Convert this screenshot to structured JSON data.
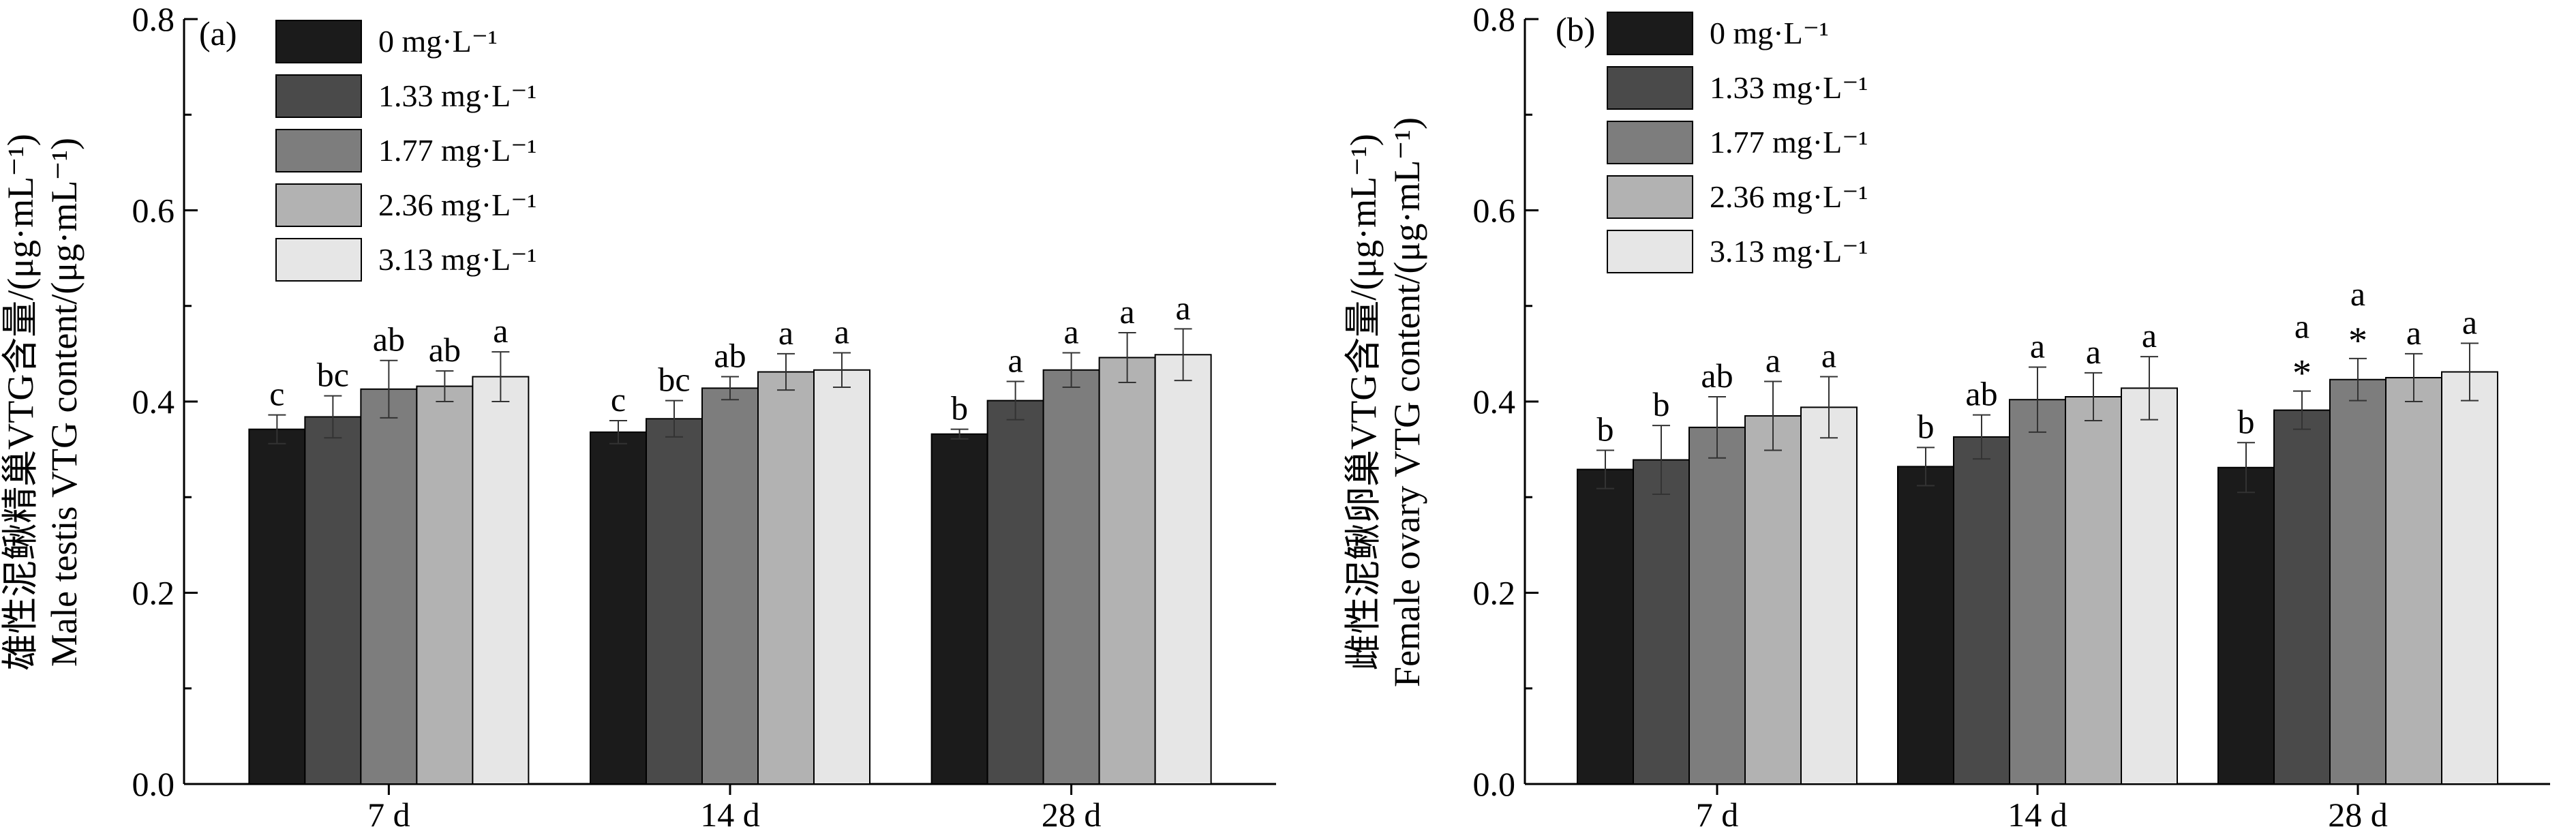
{
  "colors": {
    "series": [
      "#1b1b1b",
      "#4a4a4a",
      "#7d7d7d",
      "#b2b2b2",
      "#e6e6e6"
    ],
    "axis": "#000000",
    "bar_stroke": "#000000"
  },
  "chart_data": [
    {
      "type": "bar",
      "panel_label": "(a)",
      "ylabel_cn": "雄性泥鳅精巢VTG含量/(μg·mL⁻¹)",
      "ylabel_en": "Male testis VTG content/(μg·mL⁻¹)",
      "xlabel": "",
      "ylim": [
        0,
        0.8
      ],
      "yticks": [
        "0.0",
        "0.2",
        "0.4",
        "0.6",
        "0.8"
      ],
      "categories": [
        "7 d",
        "14 d",
        "28 d"
      ],
      "legend_position": "top-left",
      "series": [
        {
          "name": "0 mg·L⁻¹",
          "values": [
            0.371,
            0.368,
            0.366
          ],
          "errors": [
            0.015,
            0.012,
            0.005
          ],
          "letters": [
            "c",
            "c",
            "b"
          ],
          "stars": [
            "",
            "",
            ""
          ]
        },
        {
          "name": "1.33 mg·L⁻¹",
          "values": [
            0.384,
            0.382,
            0.401
          ],
          "errors": [
            0.022,
            0.019,
            0.02
          ],
          "letters": [
            "bc",
            "bc",
            "a"
          ],
          "stars": [
            "",
            "",
            ""
          ]
        },
        {
          "name": "1.77 mg·L⁻¹",
          "values": [
            0.413,
            0.414,
            0.433
          ],
          "errors": [
            0.03,
            0.012,
            0.018
          ],
          "letters": [
            "ab",
            "ab",
            "a"
          ],
          "stars": [
            "",
            "",
            ""
          ]
        },
        {
          "name": "2.36 mg·L⁻¹",
          "values": [
            0.416,
            0.431,
            0.446
          ],
          "errors": [
            0.016,
            0.019,
            0.026
          ],
          "letters": [
            "ab",
            "a",
            "a"
          ],
          "stars": [
            "",
            "",
            ""
          ]
        },
        {
          "name": "3.13 mg·L⁻¹",
          "values": [
            0.426,
            0.433,
            0.449
          ],
          "errors": [
            0.026,
            0.018,
            0.027
          ],
          "letters": [
            "a",
            "a",
            "a"
          ],
          "stars": [
            "",
            "",
            ""
          ]
        }
      ]
    },
    {
      "type": "bar",
      "panel_label": "(b)",
      "ylabel_cn": "雌性泥鳅卵巢VTG含量/(μg·mL⁻¹)",
      "ylabel_en": "Female ovary VTG content/(μg·mL⁻¹)",
      "xlabel": "",
      "ylim": [
        0,
        0.8
      ],
      "yticks": [
        "0.0",
        "0.2",
        "0.4",
        "0.6",
        "0.8"
      ],
      "categories": [
        "7 d",
        "14 d",
        "28 d"
      ],
      "legend_position": "top-left",
      "series": [
        {
          "name": "0 mg·L⁻¹",
          "values": [
            0.329,
            0.332,
            0.331
          ],
          "errors": [
            0.02,
            0.02,
            0.026
          ],
          "letters": [
            "b",
            "b",
            "b"
          ],
          "stars": [
            "",
            "",
            ""
          ]
        },
        {
          "name": "1.33 mg·L⁻¹",
          "values": [
            0.339,
            0.363,
            0.391
          ],
          "errors": [
            0.036,
            0.023,
            0.02
          ],
          "letters": [
            "b",
            "ab",
            "a"
          ],
          "stars": [
            "",
            "",
            "*"
          ]
        },
        {
          "name": "1.77 mg·L⁻¹",
          "values": [
            0.373,
            0.402,
            0.423
          ],
          "errors": [
            0.032,
            0.034,
            0.022
          ],
          "letters": [
            "ab",
            "a",
            "a"
          ],
          "stars": [
            "",
            "",
            "*"
          ]
        },
        {
          "name": "2.36 mg·L⁻¹",
          "values": [
            0.385,
            0.405,
            0.425
          ],
          "errors": [
            0.036,
            0.025,
            0.025
          ],
          "letters": [
            "a",
            "a",
            "a"
          ],
          "stars": [
            "",
            "",
            ""
          ]
        },
        {
          "name": "3.13 mg·L⁻¹",
          "values": [
            0.394,
            0.414,
            0.431
          ],
          "errors": [
            0.032,
            0.033,
            0.03
          ],
          "letters": [
            "a",
            "a",
            "a"
          ],
          "stars": [
            "",
            "",
            ""
          ]
        }
      ]
    }
  ]
}
